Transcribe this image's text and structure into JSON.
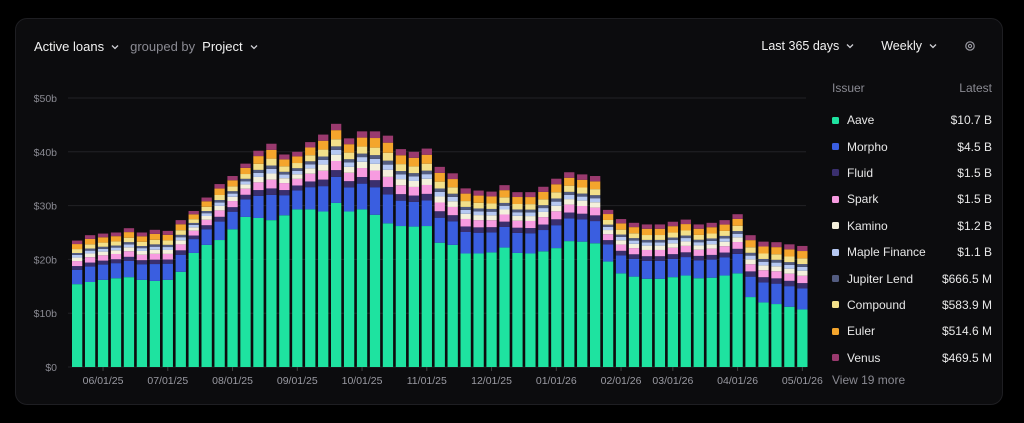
{
  "header": {
    "metric_label": "Active loans",
    "grouped_by_text": "grouped by",
    "group_label": "Project",
    "range_label": "Last 365 days",
    "interval_label": "Weekly"
  },
  "legend": {
    "col_issuer": "Issuer",
    "col_latest": "Latest",
    "view_more": "View 19 more"
  },
  "chart_data": {
    "type": "bar",
    "stacked": true,
    "ylim": [
      0,
      50
    ],
    "yticks": [
      "$0",
      "$10b",
      "$20b",
      "$30b",
      "$40b",
      "$50b"
    ],
    "xticks": [
      "06/01/25",
      "07/01/25",
      "08/01/25",
      "09/01/25",
      "10/01/25",
      "11/01/25",
      "12/01/25",
      "01/01/26",
      "02/01/26",
      "03/01/26",
      "04/01/26",
      "05/01/26"
    ],
    "xtick_bar_index": [
      2,
      7,
      12,
      17,
      22,
      27,
      32,
      37,
      42,
      46,
      51,
      56
    ],
    "grid": true,
    "series": [
      {
        "name": "Aave",
        "color": "#1ee3a0",
        "latest": "$10.7 B"
      },
      {
        "name": "Morpho",
        "color": "#3a5ee0",
        "latest": "$4.5 B"
      },
      {
        "name": "Fluid",
        "color": "#3a2f6e",
        "latest": "$1.5 B"
      },
      {
        "name": "Spark",
        "color": "#f79be0",
        "latest": "$1.5 B"
      },
      {
        "name": "Kamino",
        "color": "#f4f0dc",
        "latest": "$1.2 B"
      },
      {
        "name": "Maple Finance",
        "color": "#b6c8f2",
        "latest": "$1.1 B"
      },
      {
        "name": "Jupiter Lend",
        "color": "#535c80",
        "latest": "$666.5 M"
      },
      {
        "name": "Compound",
        "color": "#f3e08a",
        "latest": "$583.9 M"
      },
      {
        "name": "Euler",
        "color": "#f4a52c",
        "latest": "$514.6 M"
      },
      {
        "name": "Venus",
        "color": "#9a3a6e",
        "latest": "$469.5 M"
      }
    ],
    "totals": [
      23.5,
      24.5,
      24.8,
      25,
      25.8,
      25,
      25.5,
      25.3,
      27.3,
      29,
      31.5,
      34,
      35.5,
      37.8,
      40.2,
      41.5,
      39.5,
      40,
      41.8,
      43.2,
      45.2,
      42.5,
      43.8,
      43.8,
      43,
      40.5,
      40,
      40.6,
      37.2,
      36,
      33.2,
      32.8,
      32.6,
      33.8,
      32.5,
      32.5,
      33.5,
      35,
      36.2,
      35.8,
      35.5,
      29.2,
      27.5,
      26.8,
      26.5,
      26.5,
      27,
      27.4,
      26.5,
      26.8,
      27.3,
      28.4,
      24.5,
      23.3,
      23.2,
      22.8,
      22.5
    ],
    "aave": [
      15.4,
      15.8,
      16.2,
      16.5,
      16.7,
      16.2,
      16,
      16.2,
      17.7,
      21.2,
      22.7,
      23.6,
      25.6,
      27.9,
      27.7,
      27.3,
      28.2,
      29.3,
      29.3,
      28.9,
      30.5,
      28.9,
      29.3,
      28.3,
      26.7,
      26.2,
      26.1,
      26.2,
      23.1,
      22.7,
      21.1,
      21.1,
      21.3,
      22.2,
      21.2,
      21.1,
      21.5,
      22.1,
      23.4,
      23.3,
      23,
      19.6,
      17.4,
      16.8,
      16.4,
      16.4,
      16.7,
      17,
      16.5,
      16.6,
      17,
      17.4,
      13,
      12,
      11.7,
      11.2,
      10.7
    ]
  }
}
